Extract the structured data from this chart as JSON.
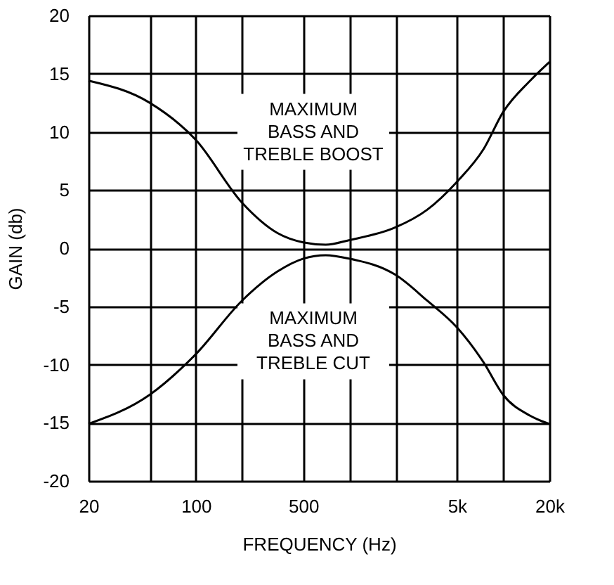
{
  "chart_data": {
    "type": "line",
    "xlabel": "FREQUENCY (Hz)",
    "ylabel": "GAIN (db)",
    "x": [
      20,
      50,
      100,
      200,
      340,
      500,
      700,
      1000,
      2000,
      3200,
      5000,
      7450,
      10000,
      15000,
      20000
    ],
    "series": [
      {
        "name": "MAXIMUM BASS AND TREBLE BOOST",
        "color": "#000000",
        "values": [
          14.4,
          12.5,
          9.3,
          3.9,
          1.3,
          0.5,
          0.3,
          0.7,
          1.8,
          3.3,
          5.7,
          8.5,
          11.7,
          14.4,
          16.0
        ]
      },
      {
        "name": "MAXIMUM BASS AND TREBLE CUT",
        "color": "#000000",
        "values": [
          -15.1,
          -12.6,
          -9.1,
          -4.5,
          -2.0,
          -0.9,
          -0.6,
          -0.9,
          -2.3,
          -4.5,
          -6.8,
          -9.8,
          -12.6,
          -14.4,
          -15.1
        ]
      }
    ],
    "log": "x",
    "xlim": [
      20,
      20000
    ],
    "xticks": [
      20,
      {
        "value": 50,
        "label": null
      },
      {
        "value": 100,
        "label": "100"
      },
      {
        "value": 200,
        "label": null
      },
      500,
      {
        "value": 1000,
        "label": null
      },
      {
        "value": 2000,
        "label": null
      },
      {
        "value": 5000,
        "label": "5k"
      },
      {
        "value": 10000,
        "label": null
      },
      {
        "value": 20000,
        "label": "20k"
      }
    ],
    "ylim": [
      -20,
      20
    ],
    "yticks": [
      -20,
      -15,
      -10,
      -5,
      0,
      5,
      10,
      15,
      20
    ],
    "grid": true,
    "legend": false,
    "marker": "none",
    "line_style": "solid"
  }
}
